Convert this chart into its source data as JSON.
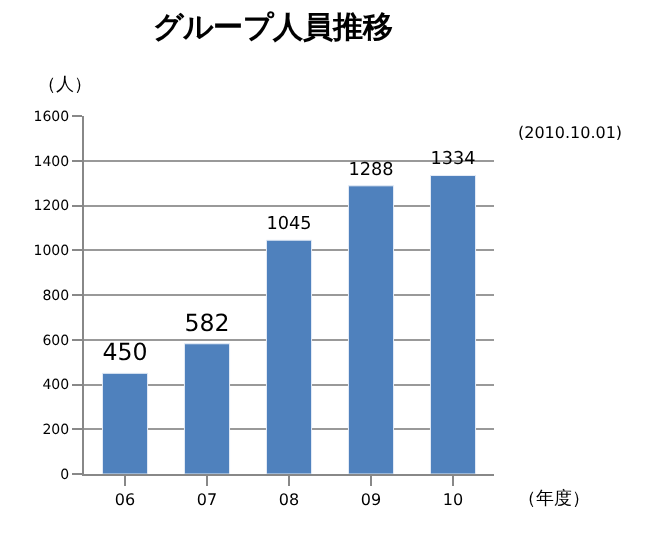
{
  "chart_data": {
    "type": "bar",
    "title": "グループ人員推移",
    "ylabel": "（人）",
    "xlabel": "（年度）",
    "annotations": [
      "(2010.10.01)"
    ],
    "categories": [
      "06",
      "07",
      "08",
      "09",
      "10"
    ],
    "values": [
      450,
      582,
      1045,
      1288,
      1334
    ],
    "color": "#4f81bd",
    "ylim": [
      0,
      1600
    ],
    "yticks": [
      0,
      200,
      400,
      600,
      800,
      1000,
      1200,
      1400,
      1600
    ],
    "grid": "y",
    "data_labels": true
  }
}
